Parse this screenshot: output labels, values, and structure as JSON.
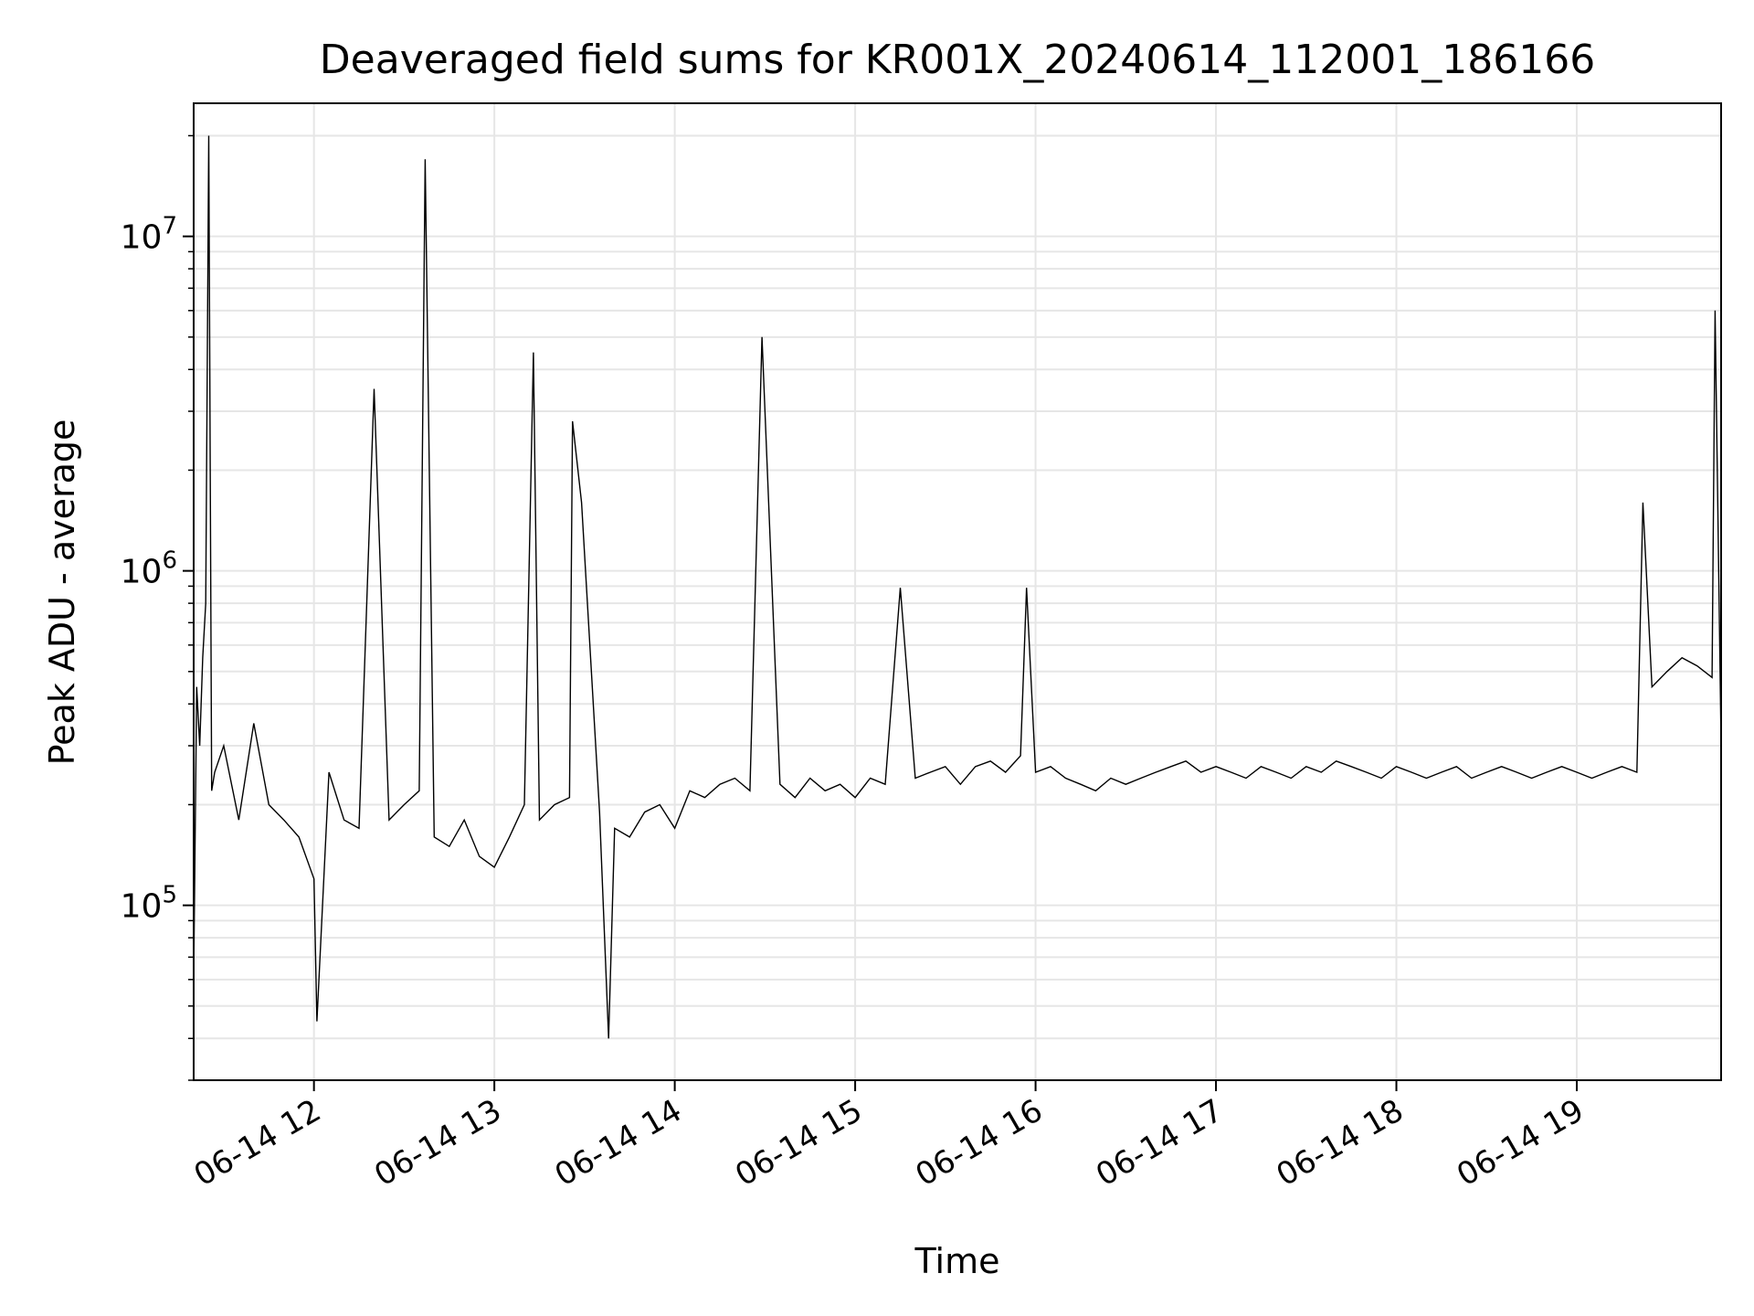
{
  "chart_data": {
    "type": "line",
    "title": "Deaveraged field sums for KR001X_20240614_112001_186166",
    "xlabel": "Time",
    "ylabel": "Peak ADU - average",
    "yscale": "log",
    "ylim": [
      30000,
      25000000
    ],
    "xlim": [
      "2024-06-14 11:20",
      "2024-06-14 19:48"
    ],
    "grid": true,
    "x_ticks": [
      "2024-06-14 12:00",
      "2024-06-14 13:00",
      "2024-06-14 14:00",
      "2024-06-14 15:00",
      "2024-06-14 16:00",
      "2024-06-14 17:00",
      "2024-06-14 18:00",
      "2024-06-14 19:00"
    ],
    "x_tick_labels": [
      "06-14 12",
      "06-14 13",
      "06-14 14",
      "06-14 15",
      "06-14 16",
      "06-14 17",
      "06-14 18",
      "06-14 19"
    ],
    "y_ticks": [
      100000,
      1000000,
      10000000
    ],
    "y_tick_labels": [
      {
        "base": "10",
        "exp": "5"
      },
      {
        "base": "10",
        "exp": "6"
      },
      {
        "base": "10",
        "exp": "7"
      }
    ],
    "line_color": "#000000",
    "series": [
      {
        "x": [
          "2024-06-14 11:20",
          "2024-06-14 11:21",
          "2024-06-14 11:22",
          "2024-06-14 11:23",
          "2024-06-14 11:24",
          "2024-06-14 11:25",
          "2024-06-14 11:26",
          "2024-06-14 11:27",
          "2024-06-14 11:30",
          "2024-06-14 11:35",
          "2024-06-14 11:40",
          "2024-06-14 11:45",
          "2024-06-14 11:50",
          "2024-06-14 11:55",
          "2024-06-14 12:00",
          "2024-06-14 12:01",
          "2024-06-14 12:05",
          "2024-06-14 12:10",
          "2024-06-14 12:15",
          "2024-06-14 12:20",
          "2024-06-14 12:25",
          "2024-06-14 12:30",
          "2024-06-14 12:35",
          "2024-06-14 12:37",
          "2024-06-14 12:40",
          "2024-06-14 12:45",
          "2024-06-14 12:50",
          "2024-06-14 12:55",
          "2024-06-14 13:00",
          "2024-06-14 13:05",
          "2024-06-14 13:10",
          "2024-06-14 13:13",
          "2024-06-14 13:15",
          "2024-06-14 13:20",
          "2024-06-14 13:25",
          "2024-06-14 13:26",
          "2024-06-14 13:29",
          "2024-06-14 13:35",
          "2024-06-14 13:38",
          "2024-06-14 13:40",
          "2024-06-14 13:45",
          "2024-06-14 13:50",
          "2024-06-14 13:55",
          "2024-06-14 14:00",
          "2024-06-14 14:05",
          "2024-06-14 14:10",
          "2024-06-14 14:15",
          "2024-06-14 14:20",
          "2024-06-14 14:25",
          "2024-06-14 14:29",
          "2024-06-14 14:35",
          "2024-06-14 14:40",
          "2024-06-14 14:45",
          "2024-06-14 14:50",
          "2024-06-14 14:55",
          "2024-06-14 15:00",
          "2024-06-14 15:05",
          "2024-06-14 15:10",
          "2024-06-14 15:15",
          "2024-06-14 15:20",
          "2024-06-14 15:25",
          "2024-06-14 15:30",
          "2024-06-14 15:35",
          "2024-06-14 15:40",
          "2024-06-14 15:45",
          "2024-06-14 15:50",
          "2024-06-14 15:55",
          "2024-06-14 15:57",
          "2024-06-14 16:00",
          "2024-06-14 16:05",
          "2024-06-14 16:10",
          "2024-06-14 16:15",
          "2024-06-14 16:20",
          "2024-06-14 16:25",
          "2024-06-14 16:30",
          "2024-06-14 16:35",
          "2024-06-14 16:40",
          "2024-06-14 16:45",
          "2024-06-14 16:50",
          "2024-06-14 16:55",
          "2024-06-14 17:00",
          "2024-06-14 17:05",
          "2024-06-14 17:10",
          "2024-06-14 17:15",
          "2024-06-14 17:20",
          "2024-06-14 17:25",
          "2024-06-14 17:30",
          "2024-06-14 17:35",
          "2024-06-14 17:40",
          "2024-06-14 17:45",
          "2024-06-14 17:50",
          "2024-06-14 17:55",
          "2024-06-14 18:00",
          "2024-06-14 18:05",
          "2024-06-14 18:10",
          "2024-06-14 18:15",
          "2024-06-14 18:20",
          "2024-06-14 18:25",
          "2024-06-14 18:30",
          "2024-06-14 18:35",
          "2024-06-14 18:40",
          "2024-06-14 18:45",
          "2024-06-14 18:50",
          "2024-06-14 18:55",
          "2024-06-14 19:00",
          "2024-06-14 19:05",
          "2024-06-14 19:10",
          "2024-06-14 19:15",
          "2024-06-14 19:20",
          "2024-06-14 19:22",
          "2024-06-14 19:25",
          "2024-06-14 19:30",
          "2024-06-14 19:35",
          "2024-06-14 19:40",
          "2024-06-14 19:45",
          "2024-06-14 19:46",
          "2024-06-14 19:48"
        ],
        "y": [
          60000,
          450000,
          300000,
          550000,
          800000,
          20000000,
          220000,
          250000,
          300000,
          180000,
          350000,
          200000,
          180000,
          160000,
          120000,
          45000,
          250000,
          180000,
          170000,
          3500000,
          180000,
          200000,
          220000,
          17000000,
          160000,
          150000,
          180000,
          140000,
          130000,
          160000,
          200000,
          4500000,
          180000,
          200000,
          210000,
          2800000,
          1600000,
          190000,
          40000,
          170000,
          160000,
          190000,
          200000,
          170000,
          220000,
          210000,
          230000,
          240000,
          220000,
          5000000,
          230000,
          210000,
          240000,
          220000,
          230000,
          210000,
          240000,
          230000,
          890000,
          240000,
          250000,
          260000,
          230000,
          260000,
          270000,
          250000,
          280000,
          890000,
          250000,
          260000,
          240000,
          230000,
          220000,
          240000,
          230000,
          240000,
          250000,
          260000,
          270000,
          250000,
          260000,
          250000,
          240000,
          260000,
          250000,
          240000,
          260000,
          250000,
          270000,
          260000,
          250000,
          240000,
          260000,
          250000,
          240000,
          250000,
          260000,
          240000,
          250000,
          260000,
          250000,
          240000,
          250000,
          260000,
          250000,
          240000,
          250000,
          260000,
          250000,
          1600000,
          450000,
          500000,
          550000,
          520000,
          480000,
          6000000,
          300000
        ]
      }
    ]
  }
}
